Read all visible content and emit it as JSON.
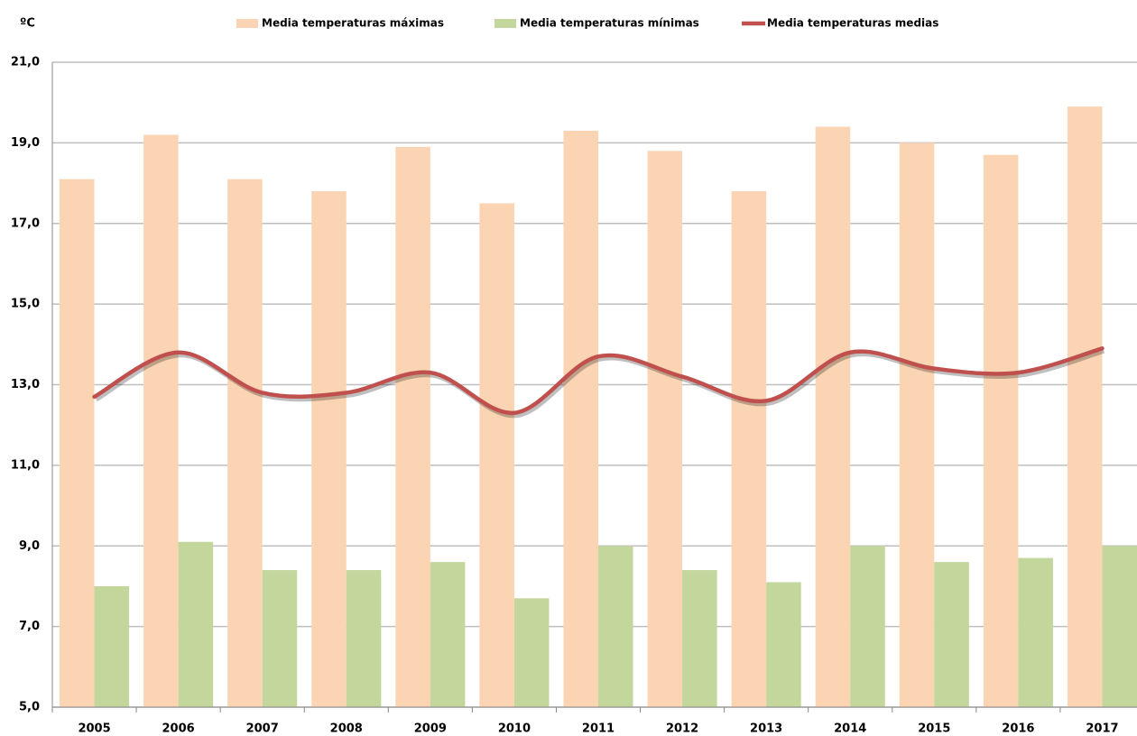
{
  "chart_data": {
    "type": "bar_line",
    "y_unit": "ºC",
    "categories": [
      "2005",
      "2006",
      "2007",
      "2008",
      "2009",
      "2010",
      "2011",
      "2012",
      "2013",
      "2014",
      "2015",
      "2016",
      "2017"
    ],
    "series": [
      {
        "name": "Media temperaturas máximas",
        "type": "bar",
        "color": "#fbd4b4",
        "values": [
          18.1,
          19.2,
          18.1,
          17.8,
          18.9,
          17.5,
          19.3,
          18.8,
          17.8,
          19.4,
          19.0,
          18.7,
          19.9
        ]
      },
      {
        "name": "Media temperaturas mínimas",
        "type": "bar",
        "color": "#c3d69b",
        "values": [
          8.0,
          9.1,
          8.4,
          8.4,
          8.6,
          7.7,
          9.0,
          8.4,
          8.1,
          9.0,
          8.6,
          8.7,
          9.0
        ]
      },
      {
        "name": "Media temperaturas medias",
        "type": "line",
        "color": "#c0504d",
        "values": [
          12.7,
          13.8,
          12.8,
          12.8,
          13.3,
          12.3,
          13.7,
          13.2,
          12.6,
          13.8,
          13.4,
          13.3,
          13.9
        ]
      }
    ],
    "ylim": [
      5,
      21
    ],
    "yticks": [
      {
        "value": 5,
        "label": "5,0"
      },
      {
        "value": 7,
        "label": "7,0"
      },
      {
        "value": 9,
        "label": "9,0"
      },
      {
        "value": 11,
        "label": "11,0"
      },
      {
        "value": 13,
        "label": "13,0"
      },
      {
        "value": 15,
        "label": "15,0"
      },
      {
        "value": 17,
        "label": "17,0"
      },
      {
        "value": 19,
        "label": "19,0"
      },
      {
        "value": 21,
        "label": "21,0"
      }
    ],
    "grid": true,
    "legend": "top"
  }
}
